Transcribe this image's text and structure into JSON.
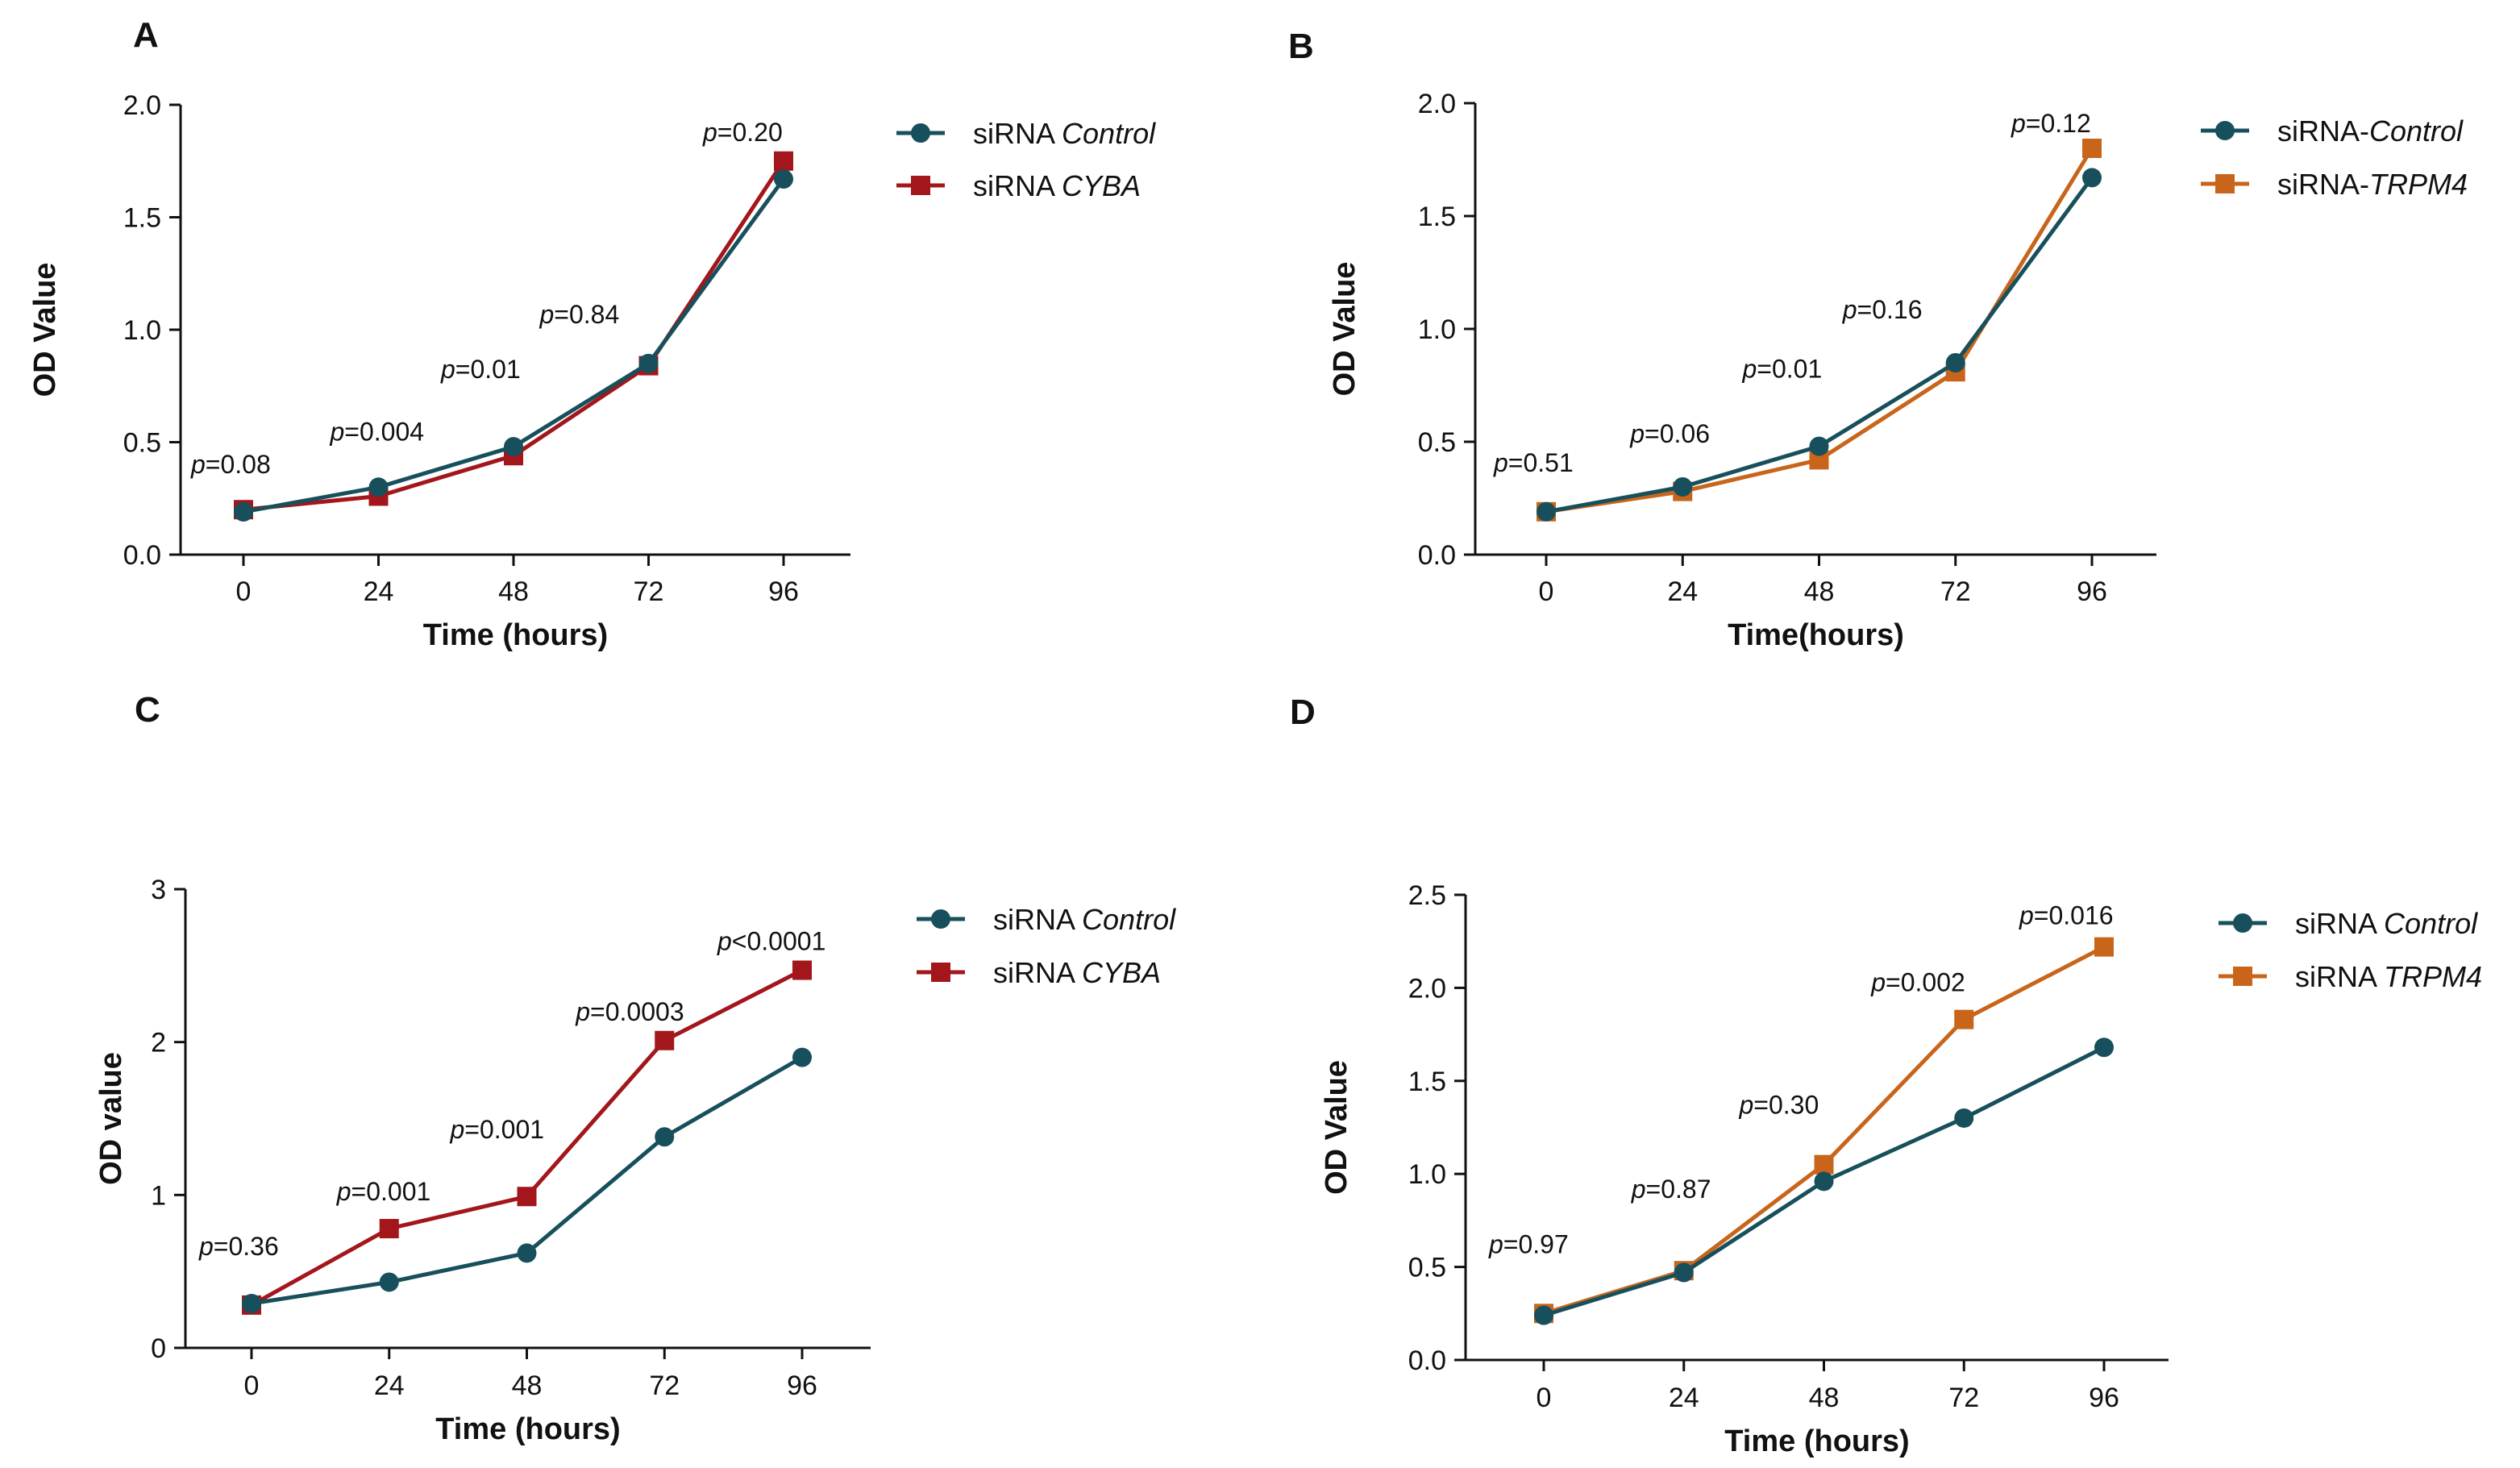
{
  "colors": {
    "control": "#17505c",
    "cyba": "#a3161b",
    "trpm4": "#c8651b",
    "axis": "#111111"
  },
  "chart_data": [
    {
      "panel": "A",
      "type": "line",
      "x": [
        0,
        24,
        48,
        72,
        96
      ],
      "xlabel": "Time (hours)",
      "ylabel": "OD Value",
      "ylim": [
        0,
        2.0
      ],
      "yticks": [
        "0.0",
        "0.5",
        "1.0",
        "1.5",
        "2.0"
      ],
      "series": [
        {
          "name": "siRNA Control",
          "prefix": "siRNA ",
          "gene": "Control",
          "marker": "circle",
          "color_key": "control",
          "values": [
            0.19,
            0.3,
            0.48,
            0.85,
            1.67
          ]
        },
        {
          "name": "siRNA CYBA",
          "prefix": "siRNA ",
          "gene": "CYBA",
          "marker": "square",
          "color_key": "cyba",
          "values": [
            0.2,
            0.26,
            0.44,
            0.84,
            1.75
          ]
        }
      ],
      "pvalues": [
        "=0.08",
        "=0.004",
        "=0.01",
        "=0.84",
        "=0.20"
      ]
    },
    {
      "panel": "B",
      "type": "line",
      "x": [
        0,
        24,
        48,
        72,
        96
      ],
      "xlabel": "Time(hours)",
      "ylabel": "OD Value",
      "ylim": [
        0,
        2.0
      ],
      "yticks": [
        "0.0",
        "0.5",
        "1.0",
        "1.5",
        "2.0"
      ],
      "series": [
        {
          "name": "siRNA-Control",
          "prefix": "siRNA-",
          "gene": "Control",
          "marker": "circle",
          "color_key": "control",
          "values": [
            0.19,
            0.3,
            0.48,
            0.85,
            1.67
          ]
        },
        {
          "name": "siRNA-TRPM4",
          "prefix": "siRNA-",
          "gene": "TRPM4",
          "marker": "square",
          "color_key": "trpm4",
          "values": [
            0.19,
            0.28,
            0.42,
            0.81,
            1.8
          ]
        }
      ],
      "pvalues": [
        "=0.51",
        "=0.06",
        "=0.01",
        "=0.16",
        "=0.12"
      ]
    },
    {
      "panel": "C",
      "type": "line",
      "x": [
        0,
        24,
        48,
        72,
        96
      ],
      "xlabel": "Time (hours)",
      "ylabel": "OD value",
      "ylim": [
        0,
        3
      ],
      "yticks": [
        "0",
        "1",
        "2",
        "3"
      ],
      "series": [
        {
          "name": "siRNA Control",
          "prefix": "siRNA ",
          "gene": "Control",
          "marker": "circle",
          "color_key": "control",
          "values": [
            0.29,
            0.43,
            0.62,
            1.38,
            1.9
          ]
        },
        {
          "name": "siRNA CYBA",
          "prefix": "siRNA ",
          "gene": "CYBA",
          "marker": "square",
          "color_key": "cyba",
          "values": [
            0.28,
            0.78,
            0.99,
            2.01,
            2.47
          ]
        }
      ],
      "pvalues": [
        "=0.36",
        "=0.001",
        "=0.001",
        "=0.0003",
        "<0.0001"
      ]
    },
    {
      "panel": "D",
      "type": "line",
      "x": [
        0,
        24,
        48,
        72,
        96
      ],
      "xlabel": "Time (hours)",
      "ylabel": "OD Value",
      "ylim": [
        0,
        2.5
      ],
      "yticks": [
        "0.0",
        "0.5",
        "1.0",
        "1.5",
        "2.0",
        "2.5"
      ],
      "series": [
        {
          "name": "siRNA Control",
          "prefix": "siRNA ",
          "gene": "Control",
          "marker": "circle",
          "color_key": "control",
          "values": [
            0.24,
            0.47,
            0.96,
            1.3,
            1.68
          ]
        },
        {
          "name": "siRNA TRPM4",
          "prefix": "siRNA ",
          "gene": "TRPM4",
          "marker": "square",
          "color_key": "trpm4",
          "values": [
            0.25,
            0.48,
            1.05,
            1.83,
            2.22
          ]
        }
      ],
      "pvalues": [
        "=0.97",
        "=0.87",
        "=0.30",
        "=0.002",
        "=0.016"
      ]
    }
  ]
}
